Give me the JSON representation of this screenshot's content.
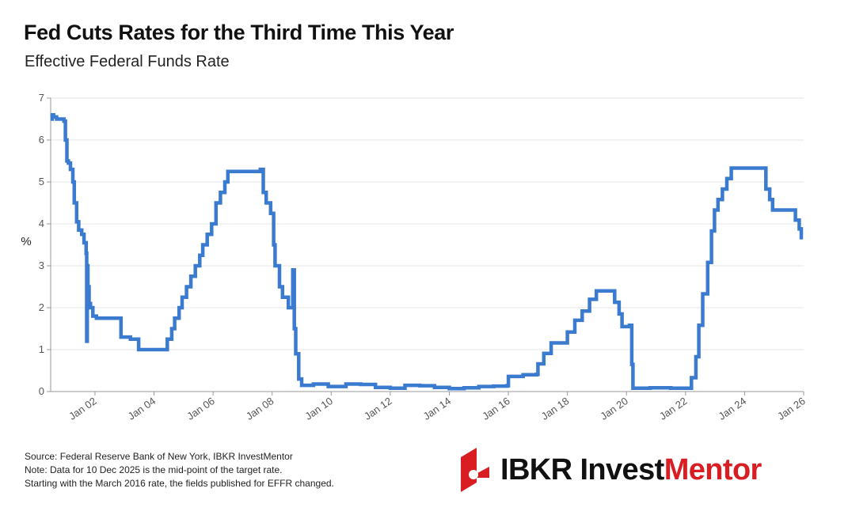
{
  "header": {
    "title": "Fed Cuts Rates for the Third Time This Year",
    "subtitle": "Effective Federal Funds Rate"
  },
  "footer": {
    "source": "Source: Federal Reserve Bank of New York, IBKR InvestMentor",
    "note1": "Note: Data for 10 Dec 2025 is the mid-point of the target rate.",
    "note2": "Starting with the March 2016 rate, the fields published for EFFR changed."
  },
  "logo": {
    "part1": "IBKR ",
    "part2": "Invest",
    "part3": "Mentor"
  },
  "colors": {
    "line": "#3a7bcf",
    "grid": "#e6e6e6",
    "axis": "#999999",
    "brand_red": "#d81e23"
  },
  "chart_data": {
    "type": "line",
    "title": "Fed Cuts Rates for the Third Time This Year",
    "subtitle": "Effective Federal Funds Rate",
    "xlabel": "",
    "ylabel": "%",
    "xlim": [
      2000.5,
      2026.0
    ],
    "ylim": [
      0,
      7
    ],
    "yticks": [
      0,
      1,
      2,
      3,
      4,
      5,
      6,
      7
    ],
    "xticks": [
      {
        "x": 2002,
        "label": "Jan 02"
      },
      {
        "x": 2004,
        "label": "Jan 04"
      },
      {
        "x": 2006,
        "label": "Jan 06"
      },
      {
        "x": 2008,
        "label": "Jan 08"
      },
      {
        "x": 2010,
        "label": "Jan 10"
      },
      {
        "x": 2012,
        "label": "Jan 12"
      },
      {
        "x": 2014,
        "label": "Jan 14"
      },
      {
        "x": 2016,
        "label": "Jan 16"
      },
      {
        "x": 2018,
        "label": "Jan 18"
      },
      {
        "x": 2020,
        "label": "Jan 20"
      },
      {
        "x": 2022,
        "label": "Jan 22"
      },
      {
        "x": 2024,
        "label": "Jan 24"
      },
      {
        "x": 2026,
        "label": "Jan 26"
      }
    ],
    "grid": true,
    "series": [
      {
        "name": "Effective Federal Funds Rate",
        "points": [
          [
            2000.5,
            6.5
          ],
          [
            2000.55,
            6.6
          ],
          [
            2000.6,
            6.55
          ],
          [
            2000.7,
            6.5
          ],
          [
            2000.85,
            6.5
          ],
          [
            2000.95,
            6.45
          ],
          [
            2001.0,
            6.0
          ],
          [
            2001.05,
            5.5
          ],
          [
            2001.1,
            5.45
          ],
          [
            2001.17,
            5.3
          ],
          [
            2001.25,
            5.0
          ],
          [
            2001.3,
            4.5
          ],
          [
            2001.38,
            4.05
          ],
          [
            2001.45,
            3.85
          ],
          [
            2001.55,
            3.75
          ],
          [
            2001.63,
            3.55
          ],
          [
            2001.7,
            3.3
          ],
          [
            2001.72,
            1.2
          ],
          [
            2001.74,
            3.0
          ],
          [
            2001.76,
            2.5
          ],
          [
            2001.8,
            2.1
          ],
          [
            2001.85,
            2.0
          ],
          [
            2001.93,
            1.8
          ],
          [
            2002.05,
            1.75
          ],
          [
            2002.3,
            1.75
          ],
          [
            2002.6,
            1.75
          ],
          [
            2002.85,
            1.75
          ],
          [
            2002.88,
            1.3
          ],
          [
            2003.2,
            1.25
          ],
          [
            2003.45,
            1.25
          ],
          [
            2003.48,
            1.0
          ],
          [
            2003.8,
            1.0
          ],
          [
            2004.3,
            1.0
          ],
          [
            2004.45,
            1.25
          ],
          [
            2004.6,
            1.5
          ],
          [
            2004.7,
            1.75
          ],
          [
            2004.85,
            2.0
          ],
          [
            2004.95,
            2.25
          ],
          [
            2005.1,
            2.5
          ],
          [
            2005.25,
            2.75
          ],
          [
            2005.4,
            3.0
          ],
          [
            2005.55,
            3.25
          ],
          [
            2005.65,
            3.5
          ],
          [
            2005.8,
            3.75
          ],
          [
            2005.95,
            4.0
          ],
          [
            2006.1,
            4.5
          ],
          [
            2006.25,
            4.75
          ],
          [
            2006.4,
            5.0
          ],
          [
            2006.5,
            5.25
          ],
          [
            2006.9,
            5.25
          ],
          [
            2007.3,
            5.25
          ],
          [
            2007.6,
            5.3
          ],
          [
            2007.7,
            4.75
          ],
          [
            2007.8,
            4.5
          ],
          [
            2007.95,
            4.25
          ],
          [
            2008.05,
            3.5
          ],
          [
            2008.1,
            3.0
          ],
          [
            2008.25,
            2.5
          ],
          [
            2008.35,
            2.25
          ],
          [
            2008.55,
            2.0
          ],
          [
            2008.7,
            2.9
          ],
          [
            2008.75,
            1.5
          ],
          [
            2008.8,
            0.9
          ],
          [
            2008.9,
            0.3
          ],
          [
            2009.0,
            0.15
          ],
          [
            2009.4,
            0.18
          ],
          [
            2009.9,
            0.12
          ],
          [
            2010.5,
            0.18
          ],
          [
            2011.0,
            0.17
          ],
          [
            2011.5,
            0.1
          ],
          [
            2012.0,
            0.08
          ],
          [
            2012.5,
            0.15
          ],
          [
            2013.0,
            0.14
          ],
          [
            2013.5,
            0.1
          ],
          [
            2014.0,
            0.07
          ],
          [
            2014.5,
            0.09
          ],
          [
            2015.0,
            0.12
          ],
          [
            2015.5,
            0.13
          ],
          [
            2015.95,
            0.14
          ],
          [
            2016.0,
            0.36
          ],
          [
            2016.5,
            0.4
          ],
          [
            2016.95,
            0.41
          ],
          [
            2017.0,
            0.66
          ],
          [
            2017.2,
            0.91
          ],
          [
            2017.45,
            1.16
          ],
          [
            2017.95,
            1.16
          ],
          [
            2018.0,
            1.42
          ],
          [
            2018.25,
            1.7
          ],
          [
            2018.5,
            1.92
          ],
          [
            2018.75,
            2.2
          ],
          [
            2018.98,
            2.4
          ],
          [
            2019.5,
            2.4
          ],
          [
            2019.6,
            2.13
          ],
          [
            2019.75,
            1.85
          ],
          [
            2019.85,
            1.55
          ],
          [
            2020.1,
            1.58
          ],
          [
            2020.18,
            0.65
          ],
          [
            2020.22,
            0.08
          ],
          [
            2020.8,
            0.09
          ],
          [
            2021.5,
            0.08
          ],
          [
            2021.95,
            0.08
          ],
          [
            2022.2,
            0.33
          ],
          [
            2022.35,
            0.83
          ],
          [
            2022.45,
            1.58
          ],
          [
            2022.58,
            2.33
          ],
          [
            2022.75,
            3.08
          ],
          [
            2022.88,
            3.83
          ],
          [
            2022.98,
            4.33
          ],
          [
            2023.1,
            4.58
          ],
          [
            2023.25,
            4.83
          ],
          [
            2023.4,
            5.08
          ],
          [
            2023.55,
            5.33
          ],
          [
            2024.0,
            5.33
          ],
          [
            2024.7,
            5.33
          ],
          [
            2024.72,
            4.83
          ],
          [
            2024.85,
            4.58
          ],
          [
            2024.95,
            4.33
          ],
          [
            2025.4,
            4.33
          ],
          [
            2025.7,
            4.33
          ],
          [
            2025.72,
            4.09
          ],
          [
            2025.85,
            3.88
          ],
          [
            2025.92,
            3.63
          ]
        ]
      }
    ]
  }
}
